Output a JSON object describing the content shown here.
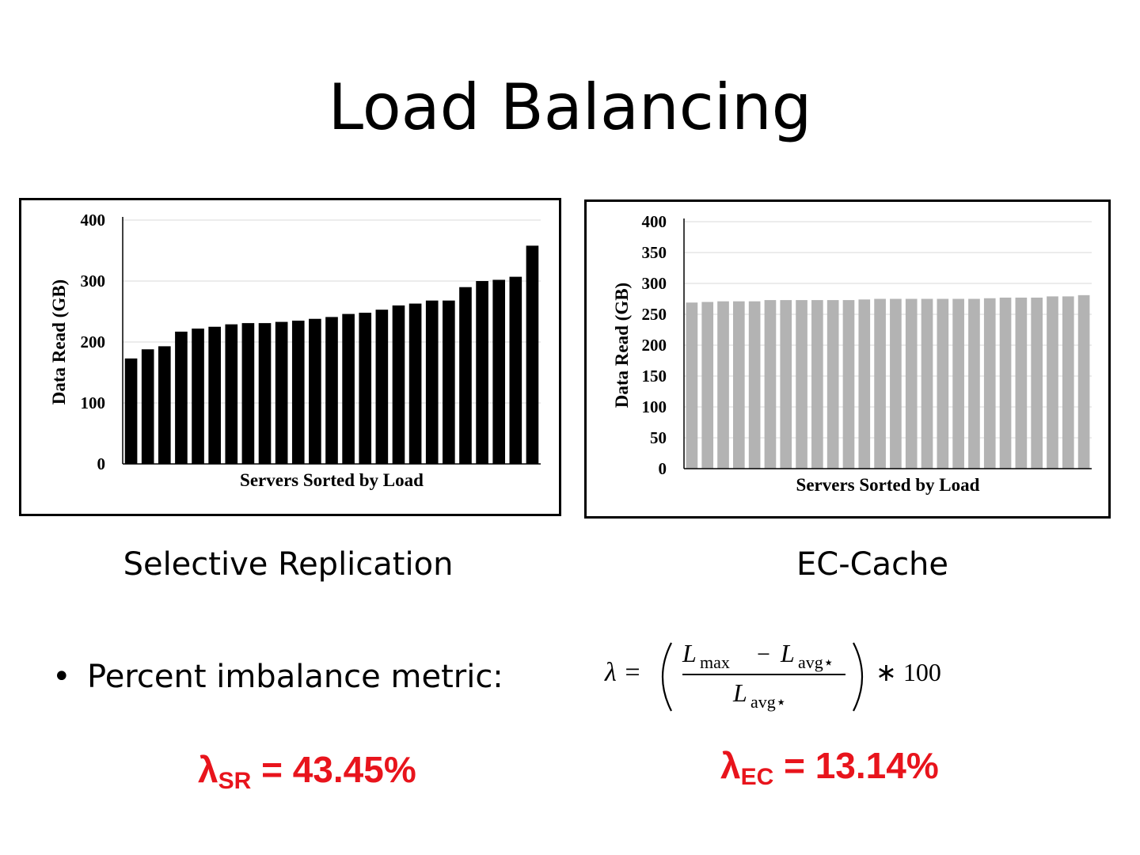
{
  "slide": {
    "title": "Load Balancing",
    "caption_left": "Selective Replication",
    "caption_right": "EC-Cache",
    "bullet": "Percent imbalance metric:",
    "formula": {
      "lhs": "λ =",
      "numerator_left": "L",
      "numerator_left_sub": "max",
      "minus": "−",
      "numerator_right": "L",
      "numerator_right_sub": "avg⋆",
      "denominator": "L",
      "denominator_sub": "avg⋆",
      "multiplier": "∗ 100"
    },
    "result_sr": {
      "symbol": "λ",
      "sub": "SR",
      "value": "= 43.45%"
    },
    "result_ec": {
      "symbol": "λ",
      "sub": "EC",
      "value": "= 13.14%"
    }
  },
  "chart_data": [
    {
      "id": "selective-replication",
      "type": "bar",
      "title": "",
      "xlabel": "Servers Sorted by Load",
      "ylabel": "Data Read (GB)",
      "ylim": [
        0,
        400
      ],
      "yticks": [
        0,
        100,
        200,
        300,
        400
      ],
      "bar_color": "#000000",
      "grid": true,
      "values": [
        173,
        188,
        193,
        217,
        222,
        225,
        229,
        231,
        231,
        233,
        235,
        238,
        241,
        246,
        248,
        253,
        260,
        263,
        268,
        268,
        290,
        300,
        302,
        307,
        358
      ]
    },
    {
      "id": "ec-cache",
      "type": "bar",
      "title": "",
      "xlabel": "Servers Sorted by Load",
      "ylabel": "Data Read (GB)",
      "ylim": [
        0,
        400
      ],
      "yticks": [
        0,
        50,
        100,
        150,
        200,
        250,
        300,
        350,
        400
      ],
      "bar_color": "#b3b3b3",
      "grid": true,
      "values": [
        269,
        270,
        271,
        271,
        271,
        273,
        273,
        273,
        273,
        273,
        273,
        274,
        275,
        275,
        275,
        275,
        275,
        275,
        275,
        276,
        277,
        277,
        277,
        279,
        279,
        281
      ]
    }
  ]
}
